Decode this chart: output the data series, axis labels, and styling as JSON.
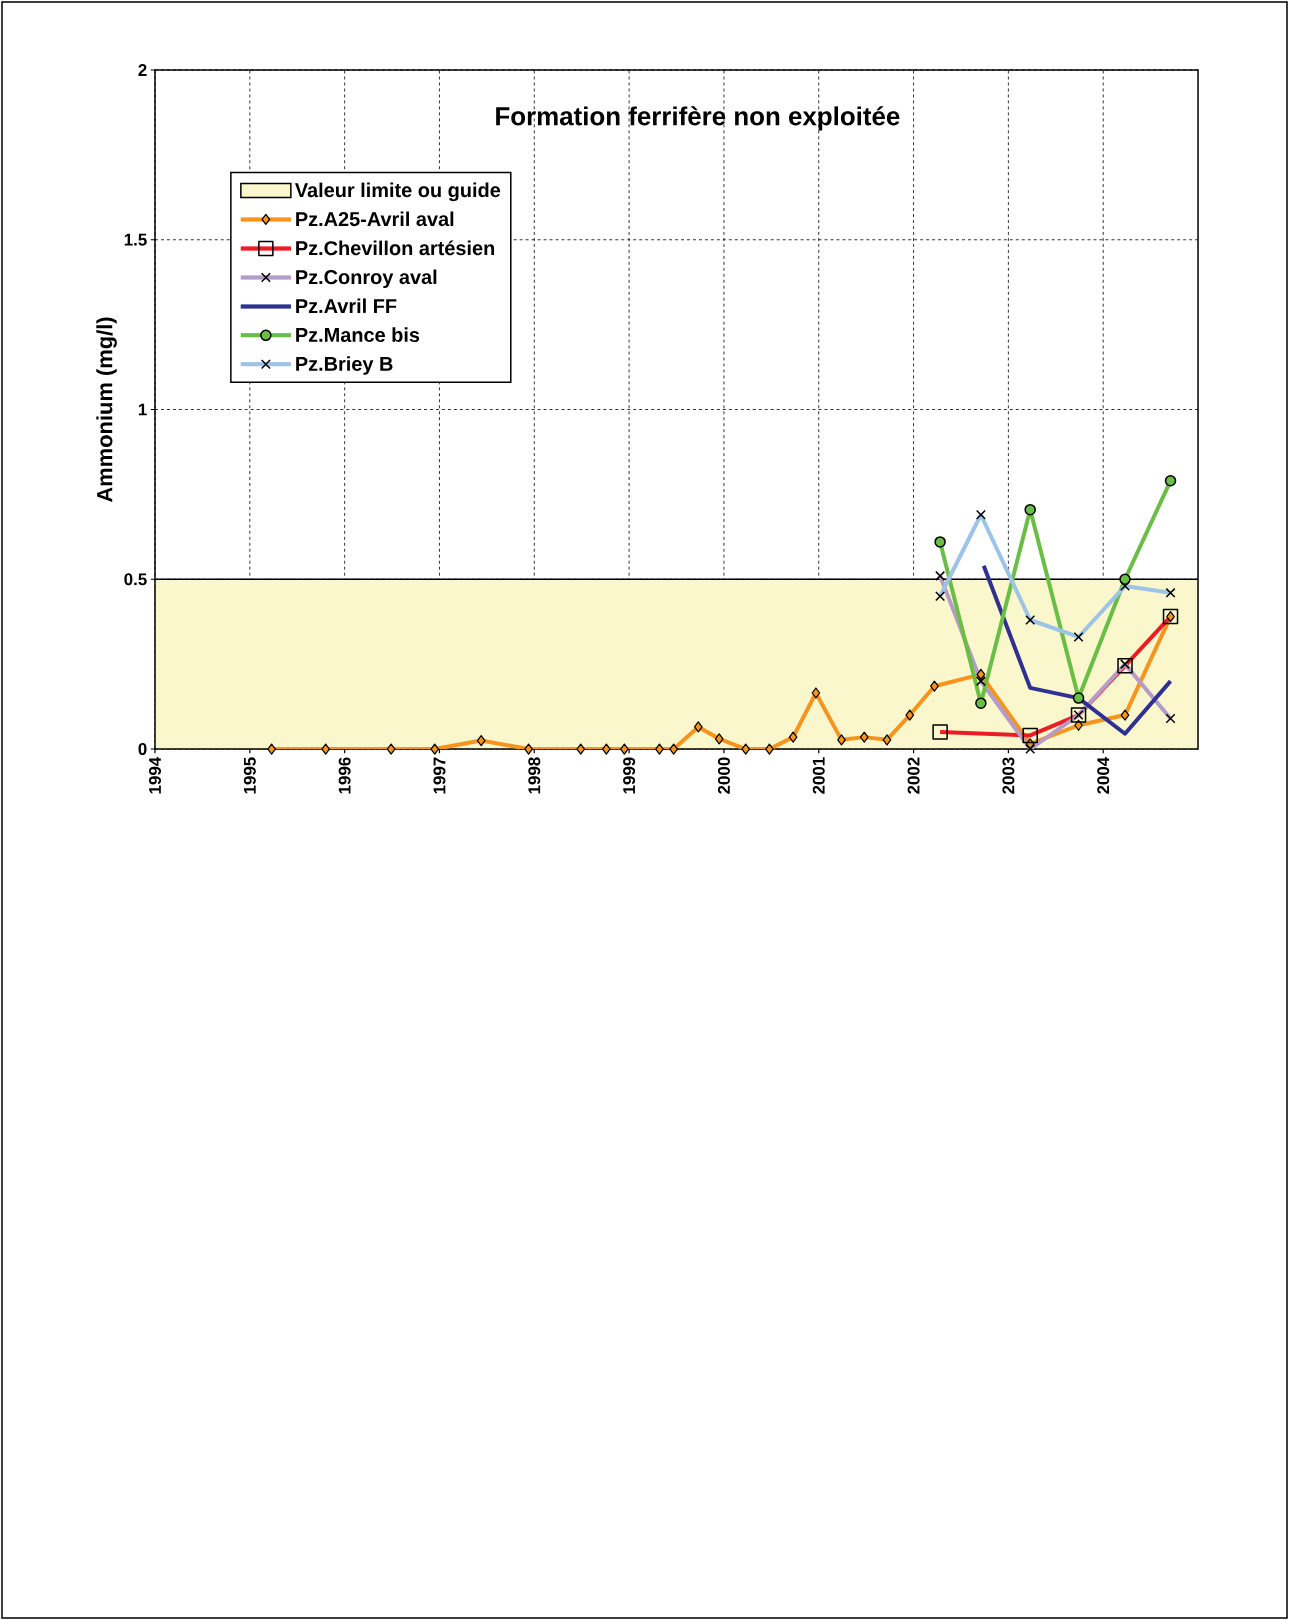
{
  "chart_data": {
    "type": "line",
    "title": "Formation ferrifère non exploitée",
    "ylabel": "Ammonium (mg/l)",
    "xlim": [
      1994,
      2005
    ],
    "xticks": [
      1994,
      1995,
      1996,
      1997,
      1998,
      1999,
      2000,
      2001,
      2002,
      2003,
      2004
    ],
    "ylim": [
      0,
      2
    ],
    "yticks": [
      0,
      0.5,
      1,
      1.5,
      2
    ],
    "grid": true,
    "legend": "top left",
    "line_style": "solid",
    "bands": [
      {
        "axis": "y",
        "from": 0,
        "to": 0.5,
        "label": "Valeur limite ou guide",
        "color": "#faf7cd"
      }
    ],
    "series": [
      {
        "name": "Pz.A25-Avril aval",
        "color": "#f7941d",
        "marker": "diamond",
        "x": [
          1995.23,
          1995.8,
          1996.49,
          1996.95,
          1997.44,
          1997.94,
          1998.49,
          1998.76,
          1998.95,
          1999.32,
          1999.47,
          1999.73,
          1999.95,
          2000.23,
          2000.48,
          2000.73,
          2000.97,
          2001.24,
          2001.48,
          2001.72,
          2001.96,
          2002.22,
          2002.71,
          2003.23,
          2003.74,
          2004.23,
          2004.71
        ],
        "values": [
          0,
          0,
          0,
          0,
          0.025,
          0,
          0,
          0,
          0,
          0,
          0,
          0.065,
          0.03,
          0,
          0,
          0.035,
          0.165,
          0.027,
          0.035,
          0.027,
          0.1,
          0.185,
          0.22,
          0.015,
          0.07,
          0.1,
          0.39
        ]
      },
      {
        "name": "Pz.Chevillon artésien",
        "color": "#ed1c24",
        "marker": "square",
        "x": [
          2002.28,
          2003.23,
          2003.74,
          2004.23,
          2004.71
        ],
        "values": [
          0.05,
          0.04,
          0.1,
          0.245,
          0.39
        ]
      },
      {
        "name": "Pz.Conroy aval",
        "color": "#b49bc8",
        "marker": "cross",
        "x": [
          2002.28,
          2002.71,
          2003.23,
          2003.74,
          2004.23,
          2004.71
        ],
        "values": [
          0.51,
          0.2,
          0,
          0.1,
          0.25,
          0.09
        ]
      },
      {
        "name": "Pz.Avril FF",
        "color": "#2e3192",
        "marker": "none",
        "x": [
          2002.74,
          2003.23,
          2003.74,
          2004.23,
          2004.71
        ],
        "values": [
          0.54,
          0.18,
          0.15,
          0.045,
          0.2
        ]
      },
      {
        "name": "Pz.Mance bis",
        "color": "#6abd45",
        "marker": "circle",
        "x": [
          2002.28,
          2002.71,
          2003.23,
          2003.74,
          2004.23,
          2004.71
        ],
        "values": [
          0.61,
          0.135,
          0.705,
          0.15,
          0.5,
          0.79
        ]
      },
      {
        "name": "Pz.Briey B",
        "color": "#9dc3e6",
        "marker": "cross",
        "x": [
          2002.28,
          2002.71,
          2003.23,
          2003.74,
          2004.23,
          2004.71
        ],
        "values": [
          0.45,
          0.69,
          0.38,
          0.33,
          0.48,
          0.46
        ]
      }
    ]
  }
}
